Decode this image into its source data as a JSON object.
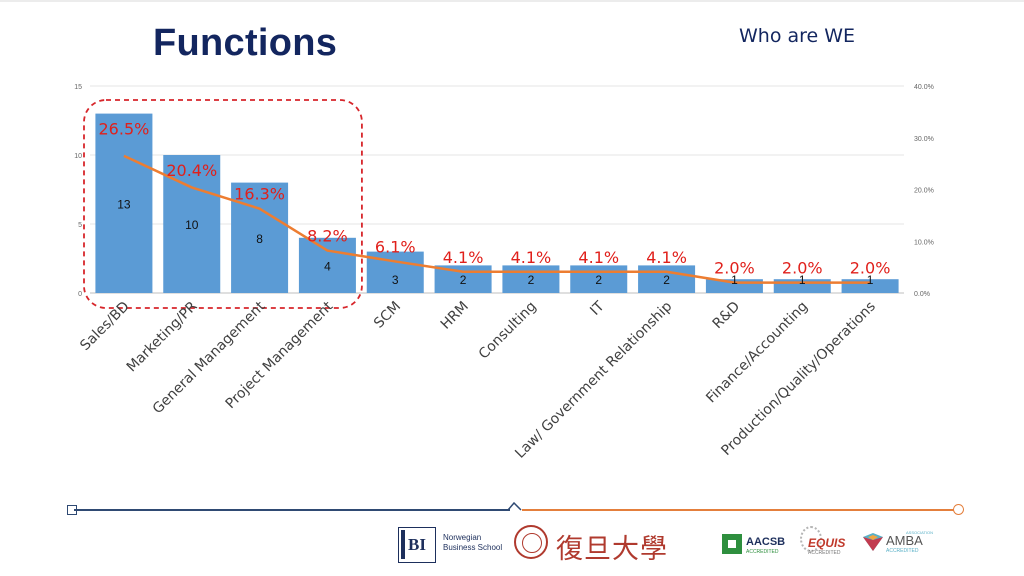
{
  "slide": {
    "title": "Functions",
    "subtitle": "Who are WE"
  },
  "colors": {
    "title": "#13265f",
    "bar": "#5b9bd5",
    "line": "#ed7d31",
    "percent_label": "#e0201b",
    "highlight_box": "#d7262b",
    "footer_left": "#2f4a73",
    "footer_right": "#e47f3c"
  },
  "chart_data": {
    "type": "bar",
    "categories": [
      "Sales/BD",
      "Marketing/PR",
      "General Management",
      "Project Management",
      "SCM",
      "HRM",
      "Consulting",
      "IT",
      "Law/ Government Relationship",
      "R&D",
      "Finance/Accounting",
      "Production/Quality/Operations"
    ],
    "series": [
      {
        "type": "bar",
        "values": [
          13,
          10,
          8,
          4,
          3,
          2,
          2,
          2,
          2,
          1,
          1,
          1
        ],
        "labels": [
          "13",
          "10",
          "8",
          "4",
          "3",
          "2",
          "2",
          "2",
          "2",
          "1",
          "1",
          "1"
        ]
      },
      {
        "type": "line",
        "axis": "secondary",
        "values": [
          26.5,
          20.4,
          16.3,
          8.2,
          6.1,
          4.1,
          4.1,
          4.1,
          4.1,
          2.0,
          2.0,
          2.0
        ],
        "labels": [
          "26.5%",
          "20.4%",
          "16.3%",
          "8.2%",
          "6.1%",
          "4.1%",
          "4.1%",
          "4.1%",
          "4.1%",
          "2.0%",
          "2.0%",
          "2.0%"
        ]
      }
    ],
    "ylim": [
      0,
      15
    ],
    "yticks": [
      "0",
      "5",
      "10",
      "15"
    ],
    "y2lim": [
      0,
      40
    ],
    "y2ticks": [
      "0.0%",
      "10.0%",
      "20.0%",
      "30.0%",
      "40.0%"
    ],
    "grid": true,
    "highlight_categories": [
      "Sales/BD",
      "Marketing/PR",
      "General Management",
      "Project Management"
    ]
  },
  "footer": {
    "bi_mark": "BI",
    "bi_name_line1": "Norwegian",
    "bi_name_line2": "Business School",
    "fudan": "復旦大學",
    "aacsb": "AACSB",
    "aacsb_sub": "ACCREDITED",
    "equis": "EQUIS",
    "equis_sub": "ACCREDITED",
    "amba": "AMBA",
    "amba_top": "ASSOCIATION",
    "amba_sub": "ACCREDITED"
  }
}
